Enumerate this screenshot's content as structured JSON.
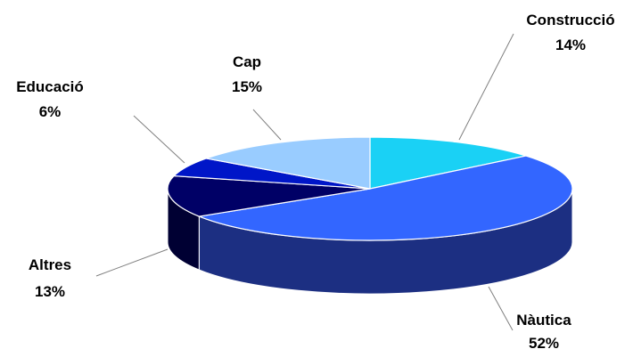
{
  "chart_data": {
    "type": "pie",
    "title": "",
    "slices": [
      {
        "label": "Construcció",
        "value": 14,
        "value_label": "14%",
        "color": "#1ad1f5",
        "side_color": "#0f8fab"
      },
      {
        "label": "Nàutica",
        "value": 52,
        "value_label": "52%",
        "color": "#3366ff",
        "side_color": "#1c2f82"
      },
      {
        "label": "Altres",
        "value": 13,
        "value_label": "13%",
        "color": "#000066",
        "side_color": "#000033"
      },
      {
        "label": "Educació",
        "value": 6,
        "value_label": "6%",
        "color": "#0016c8",
        "side_color": "#000c6e"
      },
      {
        "label": "Cap",
        "value": 15,
        "value_label": "15%",
        "color": "#99ccff",
        "side_color": "#6a8fb3"
      }
    ],
    "style": "3d-pie",
    "legend": "none",
    "labels": "outside-with-leader-lines"
  }
}
